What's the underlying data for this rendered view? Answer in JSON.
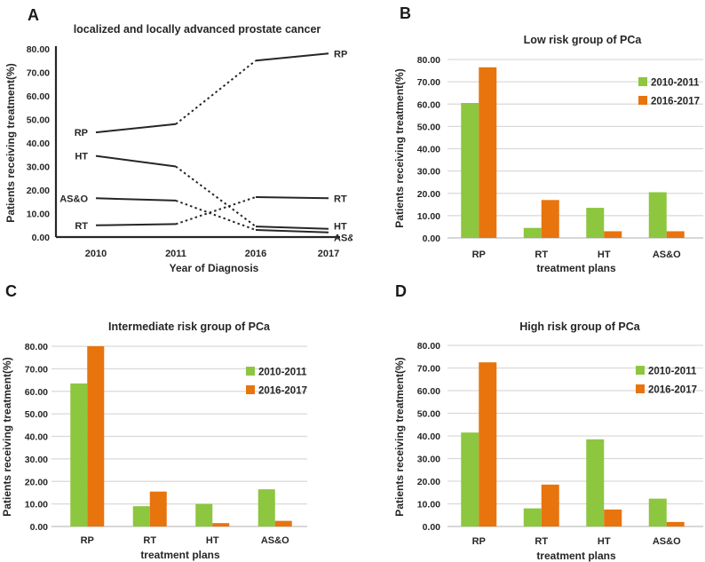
{
  "figure": {
    "panels": [
      {
        "letter": "A"
      },
      {
        "letter": "B"
      },
      {
        "letter": "C"
      },
      {
        "letter": "D"
      }
    ],
    "colors": {
      "series_2010_2011": "#8DC63F",
      "series_2016_2017": "#E8740E",
      "line": "#262626",
      "gridline": "#D9D9D9",
      "bar_axis": "#BFBFBF"
    }
  },
  "chart_data": [
    {
      "type": "line",
      "panel": "A",
      "title": "localized and locally advanced prostate cancer",
      "xlabel": "Year of Diagnosis",
      "ylabel": "Patients receiving treatment(%)",
      "x": [
        "2010",
        "2011",
        "2016",
        "2017"
      ],
      "ylim": [
        0,
        80
      ],
      "ytick_step": 10,
      "grid": false,
      "legend_position": "none",
      "line_color": "#262626",
      "segment_styles": [
        "solid",
        "dotted",
        "solid"
      ],
      "series": [
        {
          "name": "RP",
          "values": [
            44.5,
            48,
            75,
            78
          ]
        },
        {
          "name": "HT",
          "values": [
            34.5,
            30,
            4.5,
            3.5
          ]
        },
        {
          "name": "AS&O",
          "values": [
            16.5,
            15.5,
            3,
            2
          ]
        },
        {
          "name": "RT",
          "values": [
            5,
            5.5,
            17,
            16.5
          ]
        }
      ]
    },
    {
      "type": "bar",
      "panel": "B",
      "title": "Low risk group of PCa",
      "xlabel": "treatment plans",
      "ylabel": "Patients receiving treatment(%)",
      "categories": [
        "RP",
        "RT",
        "HT",
        "AS&O"
      ],
      "ylim": [
        0,
        80
      ],
      "ytick_step": 10,
      "grid": true,
      "legend_position": "top-right",
      "series": [
        {
          "name": "2010-2011",
          "color": "#8DC63F",
          "values": [
            60.5,
            4.5,
            13.5,
            20.5
          ]
        },
        {
          "name": "2016-2017",
          "color": "#E8740E",
          "values": [
            76.5,
            17,
            3,
            3
          ]
        }
      ]
    },
    {
      "type": "bar",
      "panel": "C",
      "title": "Intermediate risk group of  PCa",
      "xlabel": "treatment plans",
      "ylabel": "Patients receiving treatment(%)",
      "categories": [
        "RP",
        "RT",
        "HT",
        "AS&O"
      ],
      "ylim": [
        0,
        80
      ],
      "ytick_step": 10,
      "grid": true,
      "legend_position": "top-right",
      "series": [
        {
          "name": "2010-2011",
          "color": "#8DC63F",
          "values": [
            63.5,
            9,
            10,
            16.5
          ]
        },
        {
          "name": "2016-2017",
          "color": "#E8740E",
          "values": [
            80,
            15.5,
            1.5,
            2.5
          ]
        }
      ]
    },
    {
      "type": "bar",
      "panel": "D",
      "title": "High risk group of PCa",
      "xlabel": "treatment plans",
      "ylabel": "Patients receiving treatment(%)",
      "categories": [
        "RP",
        "RT",
        "HT",
        "AS&O"
      ],
      "ylim": [
        0,
        80
      ],
      "ytick_step": 10,
      "grid": true,
      "legend_position": "top-right",
      "series": [
        {
          "name": "2010-2011",
          "color": "#8DC63F",
          "values": [
            41.5,
            8,
            38.5,
            12.3
          ]
        },
        {
          "name": "2016-2017",
          "color": "#E8740E",
          "values": [
            72.5,
            18.5,
            7.5,
            2
          ]
        }
      ]
    }
  ]
}
